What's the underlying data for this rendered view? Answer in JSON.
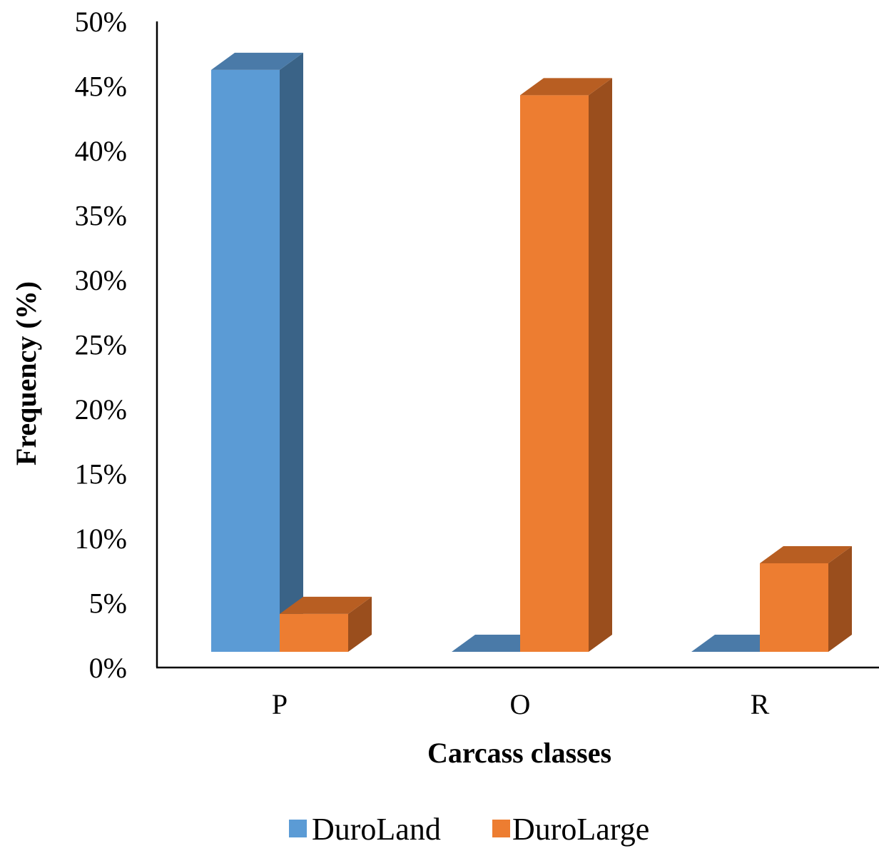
{
  "chart_data": {
    "type": "bar",
    "style": "3d-column",
    "title": "",
    "xlabel": "Carcass classes",
    "ylabel": "Frequency (%)",
    "categories": [
      "P",
      "O",
      "R"
    ],
    "ylim": [
      0,
      50
    ],
    "ytick_values": [
      0,
      5,
      10,
      15,
      20,
      25,
      30,
      35,
      40,
      45,
      50
    ],
    "ytick_labels": [
      "0%",
      "5%",
      "10%",
      "15%",
      "20%",
      "25%",
      "30%",
      "35%",
      "40%",
      "45%",
      "50%"
    ],
    "grid": false,
    "legend_position": "bottom",
    "series": [
      {
        "name": "DuroLand",
        "values": [
          46,
          0,
          0
        ],
        "color": "#5b9bd5",
        "side_color": "#3a6387",
        "top_color": "#4a7aa8"
      },
      {
        "name": "DuroLarge",
        "values": [
          3,
          44,
          7
        ],
        "color": "#ed7d31",
        "side_color": "#9a4e1d",
        "top_color": "#b85e22"
      }
    ]
  }
}
